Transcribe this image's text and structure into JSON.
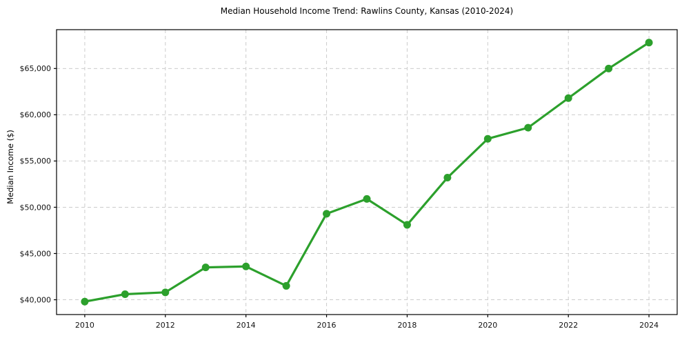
{
  "chart_data": {
    "type": "line",
    "title": "Median Household Income Trend: Rawlins County, Kansas (2010-2024)",
    "xlabel": "",
    "ylabel": "Median Income ($)",
    "x": [
      2010,
      2011,
      2012,
      2013,
      2014,
      2015,
      2016,
      2017,
      2018,
      2019,
      2020,
      2021,
      2022,
      2023,
      2024
    ],
    "values": [
      39800,
      40600,
      40800,
      43500,
      43600,
      41500,
      49300,
      50900,
      48100,
      53200,
      57400,
      58600,
      61800,
      65000,
      67800
    ],
    "series_name": "Median Household Income",
    "x_ticks": [
      2010,
      2012,
      2014,
      2016,
      2018,
      2020,
      2022,
      2024
    ],
    "x_tick_labels": [
      "2010",
      "2012",
      "2014",
      "2016",
      "2018",
      "2020",
      "2022",
      "2024"
    ],
    "y_ticks": [
      40000,
      45000,
      50000,
      55000,
      60000,
      65000
    ],
    "y_tick_labels": [
      "$40,000",
      "$45,000",
      "$50,000",
      "$55,000",
      "$60,000",
      "$65,000"
    ],
    "xlim": [
      2009.3,
      2024.7
    ],
    "ylim": [
      38400,
      69200
    ],
    "grid": true,
    "grid_style": "dashed",
    "legend_position": "none",
    "line_color": "#2ca02c",
    "grid_color": "#cccccc",
    "spine_color": "#000000",
    "marker": "circle"
  }
}
